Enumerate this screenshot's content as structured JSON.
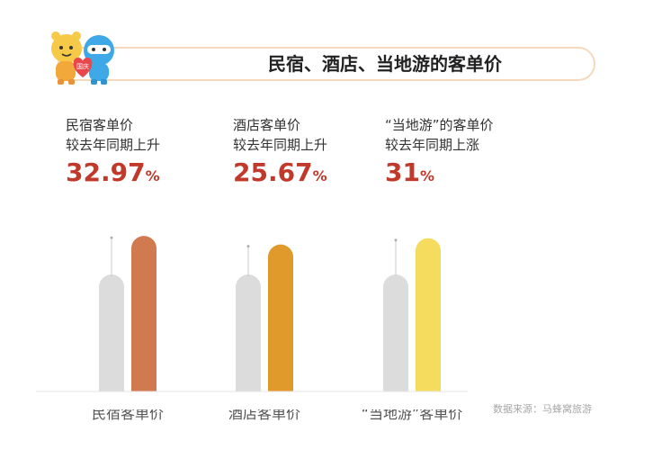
{
  "title": "民宿、酒店、当地游的客单价",
  "source": "数据来源：马蜂窝旅游",
  "mascot_badge": "国庆",
  "stats": [
    {
      "line1": "民宿客单价",
      "line2": "较去年同期上升",
      "value": "32.97",
      "unit": "%"
    },
    {
      "line1": "酒店客单价",
      "line2": "较去年同期上升",
      "value": "25.67",
      "unit": "%"
    },
    {
      "line1": "“当地游”的客单价",
      "line2": "较去年同期上涨",
      "value": "31",
      "unit": "%"
    }
  ],
  "chart_data": {
    "type": "bar",
    "categories": [
      "民宿客单价",
      "酒店客单价",
      "“当地游”客单价"
    ],
    "series": [
      {
        "values": [
          100,
          100,
          100
        ],
        "color": "#dcdcdc"
      },
      {
        "values": [
          132.97,
          125.67,
          131
        ],
        "colors": [
          "#d27a4f",
          "#e09a2b",
          "#f6dc5e"
        ]
      }
    ],
    "grid": false,
    "legend": "none"
  },
  "colors": {
    "accent": "#c0392b",
    "baseline_bar": "#dcdcdc",
    "axis": "#e6e6e6",
    "title_border": "#f5d9bd"
  }
}
